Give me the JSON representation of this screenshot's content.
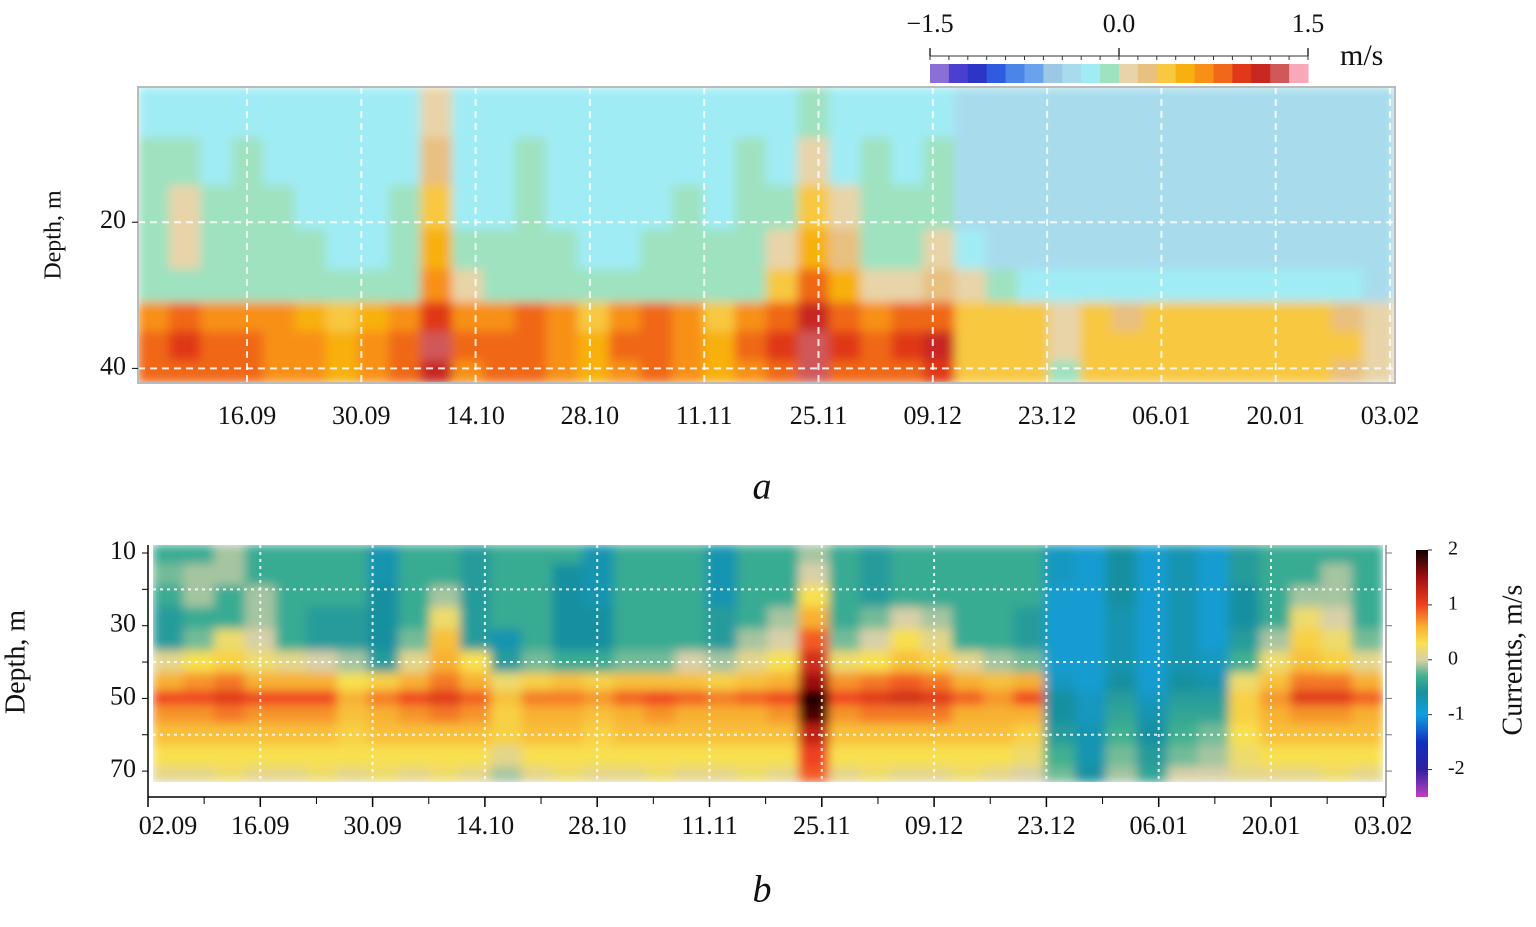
{
  "chart_data": [
    {
      "type": "contour",
      "caption": "a",
      "ylabel": "Depth, m",
      "xticks": [
        "16.09",
        "30.09",
        "14.10",
        "28.10",
        "11.11",
        "25.11",
        "09.12",
        "23.12",
        "06.01",
        "20.01",
        "03.02"
      ],
      "ylim": [
        1.5,
        42
      ],
      "yticks": [
        20,
        40
      ],
      "grid_y": [
        20,
        40
      ],
      "grid": true,
      "depths": [
        5,
        12,
        18,
        24,
        29,
        33,
        37,
        41
      ],
      "z": [
        [
          -0.2,
          -0.2,
          -0.2,
          -0.2,
          -0.2,
          -0.2,
          -0.2,
          -0.2,
          -0.2,
          0.05,
          -0.2,
          -0.2,
          -0.2,
          -0.2,
          -0.2,
          -0.2,
          -0.2,
          -0.2,
          -0.2,
          -0.2,
          -0.2,
          -0.05,
          -0.2,
          -0.2,
          -0.2,
          -0.2,
          -0.35,
          -0.35,
          -0.35,
          -0.35,
          -0.35,
          -0.35,
          -0.35,
          -0.35,
          -0.35,
          -0.35,
          -0.35,
          -0.35,
          -0.35,
          -0.35
        ],
        [
          -0.1,
          -0.1,
          -0.2,
          -0.1,
          -0.2,
          -0.2,
          -0.2,
          -0.2,
          -0.2,
          0.2,
          -0.2,
          -0.2,
          -0.1,
          -0.2,
          -0.2,
          -0.2,
          -0.2,
          -0.2,
          -0.2,
          -0.1,
          -0.2,
          0.1,
          -0.2,
          -0.1,
          -0.2,
          -0.1,
          -0.35,
          -0.35,
          -0.35,
          -0.35,
          -0.35,
          -0.35,
          -0.35,
          -0.35,
          -0.35,
          -0.35,
          -0.35,
          -0.35,
          -0.35,
          -0.35
        ],
        [
          -0.05,
          0.05,
          -0.1,
          -0.05,
          -0.1,
          -0.2,
          -0.2,
          -0.2,
          -0.1,
          0.3,
          -0.2,
          -0.2,
          -0.1,
          -0.2,
          -0.2,
          -0.2,
          -0.2,
          -0.1,
          -0.2,
          -0.1,
          -0.05,
          0.3,
          0.05,
          -0.1,
          -0.1,
          -0.05,
          -0.3,
          -0.35,
          -0.35,
          -0.35,
          -0.35,
          -0.35,
          -0.35,
          -0.35,
          -0.35,
          -0.35,
          -0.35,
          -0.35,
          -0.35,
          -0.35
        ],
        [
          -0.05,
          0.05,
          -0.1,
          -0.05,
          -0.1,
          -0.1,
          -0.2,
          -0.2,
          -0.05,
          0.45,
          -0.1,
          -0.1,
          -0.05,
          -0.1,
          -0.2,
          -0.2,
          -0.1,
          -0.05,
          -0.1,
          -0.1,
          0.1,
          0.5,
          0.2,
          -0.05,
          -0.05,
          0.05,
          -0.2,
          -0.35,
          -0.35,
          -0.35,
          -0.35,
          -0.35,
          -0.35,
          -0.35,
          -0.35,
          -0.35,
          -0.35,
          -0.35,
          -0.35,
          -0.35
        ],
        [
          -0.05,
          -0.05,
          -0.05,
          -0.05,
          -0.05,
          -0.1,
          -0.1,
          -0.1,
          -0.05,
          0.7,
          0.0,
          -0.05,
          -0.05,
          -0.05,
          -0.05,
          -0.1,
          -0.05,
          -0.05,
          -0.05,
          -0.05,
          0.3,
          0.8,
          0.5,
          0.1,
          0.1,
          0.2,
          0.0,
          -0.1,
          -0.2,
          -0.2,
          -0.2,
          -0.2,
          -0.2,
          -0.2,
          -0.2,
          -0.2,
          -0.2,
          -0.2,
          -0.2,
          -0.3
        ],
        [
          0.7,
          0.8,
          0.7,
          0.7,
          0.6,
          0.5,
          0.3,
          0.5,
          0.7,
          1.0,
          0.6,
          0.6,
          0.8,
          0.6,
          0.4,
          0.7,
          0.8,
          0.6,
          0.4,
          0.7,
          0.8,
          1.1,
          0.9,
          0.7,
          0.8,
          0.9,
          0.4,
          0.3,
          0.3,
          0.1,
          0.3,
          0.2,
          0.3,
          0.3,
          0.3,
          0.3,
          0.3,
          0.3,
          0.2,
          0.0
        ],
        [
          0.9,
          1.0,
          0.9,
          0.8,
          0.7,
          0.7,
          0.5,
          0.7,
          0.8,
          1.3,
          0.8,
          0.9,
          0.9,
          0.7,
          0.5,
          0.8,
          0.9,
          0.7,
          0.5,
          0.8,
          1.0,
          1.3,
          1.0,
          0.8,
          1.0,
          1.1,
          0.4,
          0.4,
          0.4,
          0.0,
          0.4,
          0.3,
          0.4,
          0.4,
          0.4,
          0.4,
          0.4,
          0.4,
          0.3,
          0.0
        ],
        [
          0.8,
          0.9,
          0.8,
          0.8,
          0.7,
          0.7,
          0.5,
          0.7,
          0.8,
          1.1,
          0.7,
          0.8,
          0.8,
          0.7,
          0.5,
          0.7,
          0.8,
          0.7,
          0.5,
          0.7,
          0.9,
          1.2,
          0.9,
          0.8,
          0.9,
          1.0,
          0.4,
          0.4,
          0.4,
          -0.1,
          0.3,
          0.3,
          0.4,
          0.4,
          0.4,
          0.4,
          0.4,
          0.3,
          0.2,
          0.1
        ]
      ],
      "colorbar": {
        "label": "m/s",
        "lim": [
          -1.5,
          1.5
        ],
        "ticks": [
          {
            "value": -1.5,
            "label": "−1.5"
          },
          {
            "value": 0,
            "label": "0.0"
          },
          {
            "value": 1.5,
            "label": "1.5"
          }
        ],
        "colors": [
          "#8a6fd6",
          "#4a3fd0",
          "#2b36c8",
          "#2f5be0",
          "#4c85e8",
          "#6aa3ec",
          "#9cc8e6",
          "#a8dced",
          "#a0ecf5",
          "#9ee2c0",
          "#e8d4a8",
          "#e8c080",
          "#f8c840",
          "#f8b010",
          "#f89018",
          "#f06818",
          "#e03818",
          "#c82820",
          "#d05858",
          "#f8a8b8"
        ]
      }
    },
    {
      "type": "contour",
      "caption": "b",
      "ylabel": "Depth, m",
      "xticks": [
        "02.09",
        "16.09",
        "30.09",
        "14.10",
        "28.10",
        "11.11",
        "25.11",
        "09.12",
        "23.12",
        "06.01",
        "20.01",
        "03.02"
      ],
      "ylim": [
        7.8,
        73
      ],
      "yticks": [
        10,
        30,
        50,
        70
      ],
      "grid_y": [
        20,
        40,
        60
      ],
      "grid": true,
      "depths": [
        10,
        16,
        22,
        28,
        34,
        40,
        46,
        50,
        54,
        60,
        66,
        72
      ],
      "z": [
        [
          -0.35,
          -0.35,
          -0.1,
          -0.35,
          -0.35,
          -0.35,
          -0.35,
          -0.7,
          -0.35,
          -0.35,
          -0.5,
          -0.35,
          -0.35,
          -0.35,
          -0.7,
          -0.35,
          -0.35,
          -0.35,
          -0.7,
          -0.35,
          -0.35,
          -0.1,
          -0.35,
          -0.5,
          -0.35,
          -0.35,
          -0.35,
          -0.35,
          -0.35,
          -0.8,
          -0.9,
          -0.6,
          -0.9,
          -0.7,
          -0.9,
          -0.5,
          -0.35,
          -0.35,
          -0.35,
          -0.35
        ],
        [
          -0.2,
          -0.1,
          -0.1,
          -0.35,
          -0.35,
          -0.35,
          -0.35,
          -0.7,
          -0.35,
          -0.35,
          -0.5,
          -0.35,
          -0.35,
          -0.6,
          -0.7,
          -0.35,
          -0.35,
          -0.35,
          -0.7,
          -0.35,
          -0.35,
          0.0,
          -0.35,
          -0.5,
          -0.35,
          -0.35,
          -0.35,
          -0.35,
          -0.35,
          -0.8,
          -0.9,
          -0.6,
          -0.9,
          -0.7,
          -0.9,
          -0.5,
          -0.35,
          -0.35,
          -0.1,
          -0.35
        ],
        [
          -0.35,
          -0.1,
          -0.35,
          -0.1,
          -0.35,
          -0.35,
          -0.35,
          -0.6,
          -0.35,
          -0.1,
          -0.5,
          -0.35,
          -0.35,
          -0.6,
          -0.7,
          -0.35,
          -0.35,
          -0.35,
          -0.7,
          -0.35,
          -0.35,
          0.3,
          -0.35,
          -0.5,
          -0.35,
          -0.35,
          -0.35,
          -0.35,
          -0.35,
          -0.9,
          -0.9,
          -0.6,
          -0.9,
          -0.7,
          -0.9,
          -0.6,
          -0.35,
          -0.1,
          -0.1,
          -0.35
        ],
        [
          -0.5,
          -0.35,
          -0.35,
          -0.1,
          -0.35,
          -0.5,
          -0.5,
          -0.6,
          -0.35,
          0.2,
          -0.5,
          -0.35,
          -0.35,
          -0.6,
          -0.6,
          -0.35,
          -0.35,
          -0.35,
          -0.5,
          -0.35,
          -0.1,
          0.6,
          -0.35,
          -0.2,
          0.0,
          -0.1,
          -0.35,
          -0.35,
          -0.5,
          -0.9,
          -0.9,
          -0.7,
          -0.9,
          -0.7,
          -0.9,
          -0.6,
          -0.35,
          0.2,
          0.0,
          -0.35
        ],
        [
          -0.5,
          -0.2,
          0.2,
          0.0,
          -0.35,
          -0.5,
          -0.5,
          -0.6,
          -0.2,
          0.5,
          -0.5,
          -0.7,
          -0.35,
          -0.6,
          -0.6,
          -0.35,
          -0.35,
          -0.35,
          -0.5,
          -0.1,
          0.0,
          0.9,
          -0.2,
          0.0,
          0.3,
          0.1,
          -0.35,
          -0.35,
          -0.5,
          -0.9,
          -0.9,
          -0.7,
          -0.9,
          -0.7,
          -0.9,
          -0.5,
          -0.1,
          0.4,
          0.2,
          -0.2
        ],
        [
          0.1,
          0.3,
          0.4,
          0.2,
          0.1,
          0.0,
          -0.1,
          -0.5,
          0.1,
          0.6,
          0.3,
          -0.5,
          -0.2,
          -0.35,
          -0.35,
          -0.2,
          -0.2,
          0.0,
          -0.1,
          0.1,
          0.3,
          1.2,
          0.2,
          0.3,
          0.5,
          0.4,
          0.1,
          -0.1,
          -0.2,
          -0.9,
          -0.9,
          -0.7,
          -0.9,
          -0.7,
          -0.8,
          -0.3,
          0.2,
          0.5,
          0.4,
          0.1
        ],
        [
          0.6,
          0.7,
          0.8,
          0.6,
          0.6,
          0.6,
          0.3,
          0.4,
          0.6,
          0.8,
          0.6,
          0.2,
          0.4,
          0.5,
          0.4,
          0.5,
          0.5,
          0.5,
          0.4,
          0.5,
          0.6,
          1.5,
          0.7,
          0.8,
          0.9,
          0.8,
          0.6,
          0.5,
          0.6,
          -0.8,
          -0.9,
          -0.6,
          -0.9,
          -0.6,
          -0.7,
          0.2,
          0.5,
          0.8,
          0.8,
          0.6
        ],
        [
          1.0,
          1.0,
          1.1,
          1.0,
          1.0,
          1.0,
          0.6,
          0.8,
          1.0,
          1.1,
          0.9,
          0.5,
          0.8,
          0.8,
          0.7,
          0.9,
          1.0,
          0.9,
          0.8,
          0.9,
          1.0,
          2.0,
          1.0,
          1.1,
          1.2,
          1.1,
          0.9,
          0.7,
          1.0,
          -0.6,
          -0.8,
          -0.5,
          -0.8,
          -0.5,
          -0.5,
          0.4,
          0.7,
          1.1,
          1.1,
          0.9
        ],
        [
          0.7,
          0.7,
          0.8,
          0.7,
          0.7,
          0.7,
          0.5,
          0.6,
          0.7,
          0.8,
          0.7,
          0.4,
          0.6,
          0.6,
          0.5,
          0.6,
          0.7,
          0.6,
          0.6,
          0.6,
          0.7,
          1.8,
          0.7,
          0.8,
          0.8,
          0.8,
          0.6,
          0.6,
          0.6,
          -0.6,
          -0.8,
          -0.4,
          -0.7,
          -0.4,
          -0.4,
          0.4,
          0.6,
          0.7,
          0.7,
          0.6
        ],
        [
          0.5,
          0.5,
          0.5,
          0.5,
          0.5,
          0.5,
          0.4,
          0.5,
          0.5,
          0.5,
          0.5,
          0.4,
          0.5,
          0.5,
          0.4,
          0.5,
          0.5,
          0.5,
          0.5,
          0.5,
          0.5,
          1.3,
          0.5,
          0.5,
          0.5,
          0.5,
          0.5,
          0.5,
          0.4,
          -0.5,
          -0.7,
          -0.3,
          -0.6,
          -0.3,
          -0.2,
          0.3,
          0.5,
          0.5,
          0.5,
          0.5
        ],
        [
          0.3,
          0.3,
          0.3,
          0.3,
          0.3,
          0.3,
          0.3,
          0.3,
          0.3,
          0.3,
          0.3,
          0.1,
          0.3,
          0.3,
          0.3,
          0.3,
          0.3,
          0.3,
          0.3,
          0.3,
          0.3,
          1.0,
          0.3,
          0.3,
          0.3,
          0.3,
          0.3,
          0.3,
          0.2,
          -0.3,
          -0.7,
          -0.2,
          -0.5,
          -0.2,
          -0.1,
          0.2,
          0.3,
          0.3,
          0.3,
          0.3
        ],
        [
          0.1,
          0.1,
          0.2,
          0.1,
          0.1,
          0.2,
          0.1,
          0.2,
          0.1,
          0.2,
          0.1,
          -0.1,
          0.1,
          0.2,
          0.1,
          0.1,
          0.2,
          0.1,
          0.1,
          0.2,
          0.1,
          0.9,
          0.1,
          0.2,
          0.1,
          0.1,
          0.2,
          0.1,
          0.0,
          -0.2,
          -0.6,
          -0.1,
          -0.4,
          0.0,
          0.0,
          0.1,
          0.1,
          0.1,
          0.2,
          0.1
        ]
      ],
      "colorbar": {
        "label": "Currents, m/s",
        "lim": [
          -2.5,
          2
        ],
        "ticks": [
          2,
          1,
          0,
          -1,
          -2
        ],
        "colorscale": [
          [
            -2.5,
            "#c040c0"
          ],
          [
            -2,
            "#3020a0"
          ],
          [
            -1.5,
            "#1030c0"
          ],
          [
            -1,
            "#10a0e0"
          ],
          [
            -0.6,
            "#1890a0"
          ],
          [
            -0.3,
            "#40b090"
          ],
          [
            0,
            "#d8d0a8"
          ],
          [
            0.3,
            "#f8e050"
          ],
          [
            0.6,
            "#f8b030"
          ],
          [
            1,
            "#f04020"
          ],
          [
            1.5,
            "#a01010"
          ],
          [
            2,
            "#100000"
          ]
        ]
      }
    }
  ]
}
